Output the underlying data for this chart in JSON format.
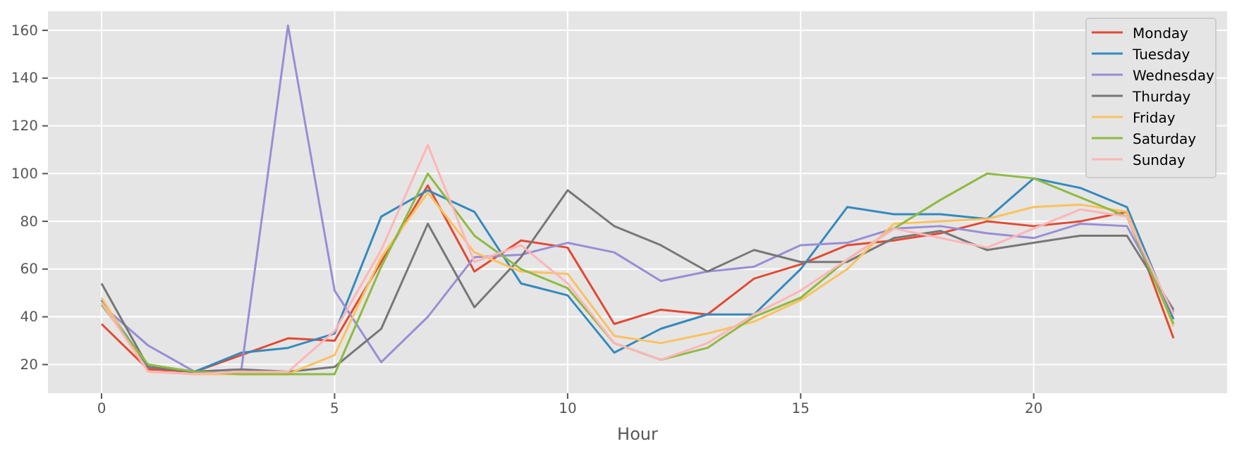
{
  "chart_data": {
    "type": "line",
    "xlabel": "Hour",
    "x": [
      0,
      1,
      2,
      3,
      4,
      5,
      6,
      7,
      8,
      9,
      10,
      11,
      12,
      13,
      14,
      15,
      16,
      17,
      18,
      19,
      20,
      21,
      22,
      23
    ],
    "xlim": [
      -1.15,
      24.15
    ],
    "xticks": [
      0,
      5,
      10,
      15,
      20
    ],
    "ylim": [
      8,
      168
    ],
    "yticks": [
      20,
      40,
      60,
      80,
      100,
      120,
      140,
      160
    ],
    "grid": true,
    "legend": "top right",
    "series": [
      {
        "name": "Monday",
        "color": "#e24a33",
        "values": [
          37,
          18,
          17,
          24,
          31,
          30,
          63,
          95,
          59,
          72,
          69,
          37,
          43,
          41,
          56,
          62,
          70,
          72,
          75,
          80,
          78,
          80,
          84,
          31
        ]
      },
      {
        "name": "Tuesday",
        "color": "#348abd",
        "values": [
          47,
          19,
          17,
          25,
          27,
          33,
          82,
          93,
          84,
          54,
          49,
          25,
          35,
          41,
          41,
          60,
          86,
          83,
          83,
          81,
          98,
          94,
          86,
          39
        ]
      },
      {
        "name": "Wednesday",
        "color": "#988ed5",
        "values": [
          45,
          28,
          17,
          18,
          162,
          51,
          21,
          40,
          65,
          66,
          71,
          67,
          55,
          59,
          61,
          70,
          71,
          77,
          78,
          75,
          73,
          79,
          78,
          42
        ]
      },
      {
        "name": "Thurday",
        "color": "#777777",
        "values": [
          54,
          19,
          17,
          18,
          17,
          19,
          35,
          79,
          44,
          65,
          93,
          78,
          70,
          59,
          68,
          63,
          63,
          73,
          76,
          68,
          71,
          74,
          74,
          43
        ]
      },
      {
        "name": "Friday",
        "color": "#fbc15e",
        "values": [
          48,
          17,
          16,
          16,
          16,
          24,
          65,
          92,
          67,
          59,
          58,
          32,
          29,
          33,
          38,
          47,
          60,
          79,
          80,
          81,
          86,
          87,
          84,
          36
        ]
      },
      {
        "name": "Saturday",
        "color": "#8eba42",
        "values": [
          45,
          20,
          17,
          16,
          16,
          16,
          61,
          100,
          74,
          60,
          52,
          29,
          22,
          27,
          40,
          48,
          64,
          77,
          89,
          100,
          98,
          90,
          82,
          37
        ]
      },
      {
        "name": "Sunday",
        "color": "#ffb5b8",
        "values": [
          46,
          17,
          16,
          17,
          17,
          34,
          68,
          112,
          63,
          70,
          54,
          29,
          22,
          29,
          41,
          51,
          64,
          77,
          73,
          69,
          77,
          85,
          82,
          41
        ]
      }
    ]
  }
}
